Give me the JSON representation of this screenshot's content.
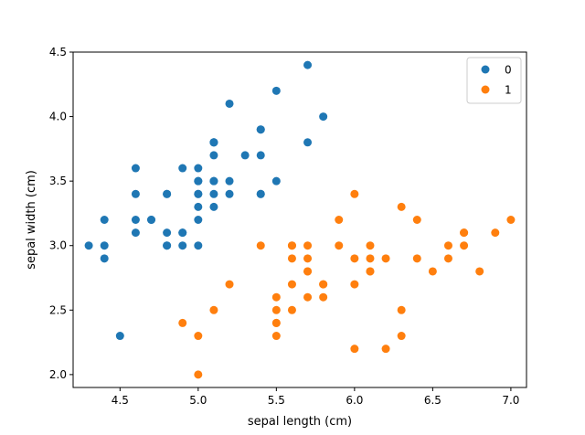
{
  "chart_data": {
    "type": "scatter",
    "title": "",
    "xlabel": "sepal length (cm)",
    "ylabel": "sepal width (cm)",
    "xlim": [
      4.2,
      7.1
    ],
    "ylim": [
      1.9,
      4.5
    ],
    "xticks": [
      4.5,
      5.0,
      5.5,
      6.0,
      6.5,
      7.0
    ],
    "xtick_labels": [
      "4.5",
      "5.0",
      "5.5",
      "6.0",
      "6.5",
      "7.0"
    ],
    "yticks": [
      2.0,
      2.5,
      3.0,
      3.5,
      4.0,
      4.5
    ],
    "ytick_labels": [
      "2.0",
      "2.5",
      "3.0",
      "3.5",
      "4.0",
      "4.5"
    ],
    "grid": false,
    "legend": "top-right",
    "series": [
      {
        "name": "0",
        "color": "#1f77b4",
        "points": [
          [
            5.1,
            3.5
          ],
          [
            4.9,
            3.0
          ],
          [
            4.7,
            3.2
          ],
          [
            4.6,
            3.1
          ],
          [
            5.0,
            3.6
          ],
          [
            5.4,
            3.9
          ],
          [
            4.6,
            3.4
          ],
          [
            5.0,
            3.4
          ],
          [
            4.4,
            2.9
          ],
          [
            4.9,
            3.1
          ],
          [
            5.4,
            3.7
          ],
          [
            4.8,
            3.4
          ],
          [
            4.8,
            3.0
          ],
          [
            4.3,
            3.0
          ],
          [
            5.8,
            4.0
          ],
          [
            5.7,
            4.4
          ],
          [
            5.4,
            3.9
          ],
          [
            5.1,
            3.5
          ],
          [
            5.7,
            3.8
          ],
          [
            5.1,
            3.8
          ],
          [
            5.4,
            3.4
          ],
          [
            5.1,
            3.7
          ],
          [
            4.6,
            3.6
          ],
          [
            5.1,
            3.3
          ],
          [
            4.8,
            3.4
          ],
          [
            5.0,
            3.0
          ],
          [
            5.0,
            3.4
          ],
          [
            5.2,
            3.5
          ],
          [
            5.2,
            3.4
          ],
          [
            4.7,
            3.2
          ],
          [
            4.8,
            3.1
          ],
          [
            5.4,
            3.4
          ],
          [
            5.2,
            4.1
          ],
          [
            5.5,
            4.2
          ],
          [
            4.9,
            3.1
          ],
          [
            5.0,
            3.2
          ],
          [
            5.5,
            3.5
          ],
          [
            4.9,
            3.6
          ],
          [
            4.4,
            3.0
          ],
          [
            5.1,
            3.4
          ],
          [
            5.0,
            3.5
          ],
          [
            4.5,
            2.3
          ],
          [
            4.4,
            3.2
          ],
          [
            5.0,
            3.5
          ],
          [
            5.1,
            3.8
          ],
          [
            4.8,
            3.0
          ],
          [
            5.1,
            3.8
          ],
          [
            4.6,
            3.2
          ],
          [
            5.3,
            3.7
          ],
          [
            5.0,
            3.3
          ]
        ]
      },
      {
        "name": "1",
        "color": "#ff7f0e",
        "points": [
          [
            7.0,
            3.2
          ],
          [
            6.4,
            3.2
          ],
          [
            6.9,
            3.1
          ],
          [
            5.5,
            2.3
          ],
          [
            6.5,
            2.8
          ],
          [
            5.7,
            2.8
          ],
          [
            6.3,
            3.3
          ],
          [
            4.9,
            2.4
          ],
          [
            6.6,
            2.9
          ],
          [
            5.2,
            2.7
          ],
          [
            5.0,
            2.0
          ],
          [
            5.9,
            3.0
          ],
          [
            6.0,
            2.2
          ],
          [
            6.1,
            2.9
          ],
          [
            5.6,
            2.9
          ],
          [
            6.7,
            3.1
          ],
          [
            5.6,
            3.0
          ],
          [
            5.8,
            2.7
          ],
          [
            6.2,
            2.2
          ],
          [
            5.6,
            2.5
          ],
          [
            5.9,
            3.2
          ],
          [
            6.1,
            2.8
          ],
          [
            6.3,
            2.5
          ],
          [
            6.1,
            2.8
          ],
          [
            6.4,
            2.9
          ],
          [
            6.6,
            3.0
          ],
          [
            6.8,
            2.8
          ],
          [
            6.7,
            3.0
          ],
          [
            6.0,
            2.9
          ],
          [
            5.7,
            2.6
          ],
          [
            5.5,
            2.4
          ],
          [
            5.5,
            2.4
          ],
          [
            5.8,
            2.7
          ],
          [
            6.0,
            2.7
          ],
          [
            5.4,
            3.0
          ],
          [
            6.0,
            3.4
          ],
          [
            6.7,
            3.1
          ],
          [
            6.3,
            2.3
          ],
          [
            5.6,
            3.0
          ],
          [
            5.5,
            2.5
          ],
          [
            5.5,
            2.6
          ],
          [
            6.1,
            3.0
          ],
          [
            5.8,
            2.6
          ],
          [
            5.0,
            2.3
          ],
          [
            5.6,
            2.7
          ],
          [
            5.7,
            3.0
          ],
          [
            5.7,
            2.9
          ],
          [
            6.2,
            2.9
          ],
          [
            5.1,
            2.5
          ],
          [
            5.7,
            2.8
          ]
        ]
      }
    ]
  }
}
